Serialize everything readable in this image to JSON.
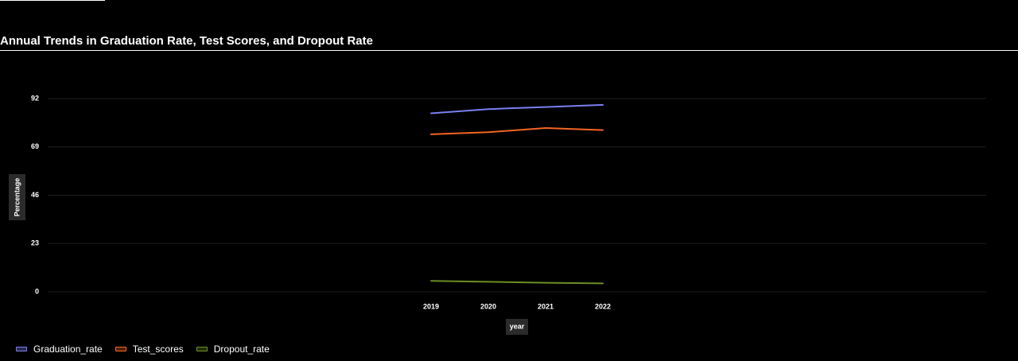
{
  "page": {
    "title": "Annual Trends in Graduation Rate, Test Scores, and Dropout Rate"
  },
  "colors": {
    "background": "#000000",
    "grid": "#1e1e1e",
    "text": "#ffffff",
    "axis_label_bg": "#2b2b2b"
  },
  "chart_data": {
    "type": "line",
    "title": "Annual Trends in Graduation Rate, Test Scores, and Dropout Rate",
    "xlabel": "year",
    "ylabel": "Percentage",
    "categories": [
      "2019",
      "2020",
      "2021",
      "2022"
    ],
    "yticks": [
      0,
      23,
      46,
      69,
      92
    ],
    "ylim": [
      0,
      92
    ],
    "grid": true,
    "legend_position": "bottom-left",
    "series": [
      {
        "name": "Graduation_rate",
        "color": "#7b7ff0",
        "values": [
          85,
          87,
          88,
          89
        ]
      },
      {
        "name": "Test_scores",
        "color": "#f26522",
        "values": [
          75,
          76,
          78,
          77
        ]
      },
      {
        "name": "Dropout_rate",
        "color": "#6b8e23",
        "values": [
          5.2,
          4.8,
          4.3,
          4.0
        ]
      }
    ]
  }
}
